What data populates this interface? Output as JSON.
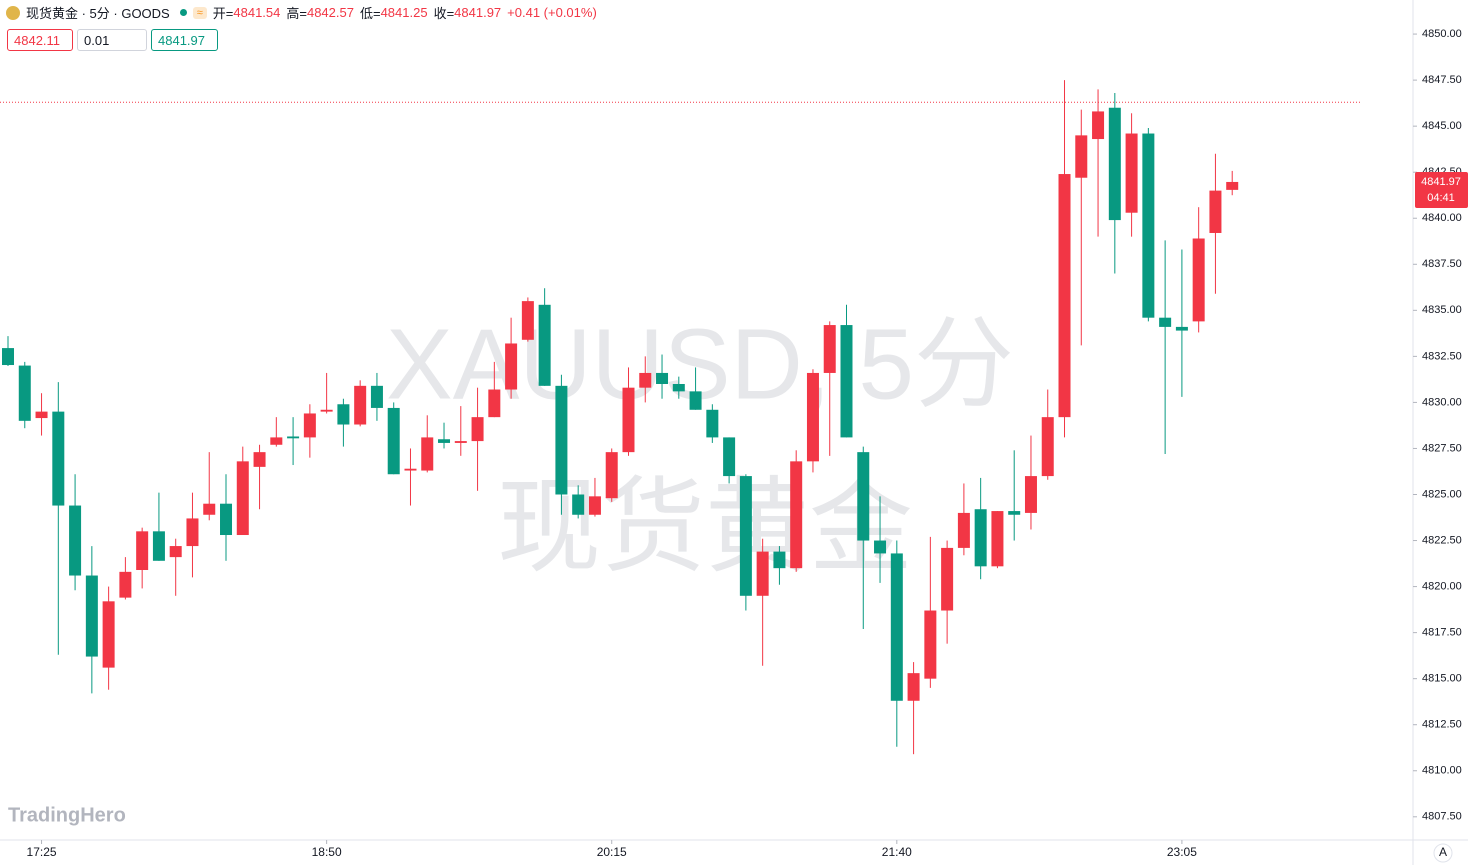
{
  "header": {
    "symbol": "现货黄金 · 5分 · GOODS",
    "open_label": "开=",
    "high_label": "高=",
    "low_label": "低=",
    "close_label": "收=",
    "change": "+0.41 (+0.01%)"
  },
  "quote": {
    "sell": 4842.11,
    "qty": 0.01,
    "buy": 4841.97
  },
  "watermark": [
    "XAUUSD, 5分",
    "现货黄金"
  ],
  "logo": "TradingHero",
  "countdown": "04:41",
  "scale_button": "A",
  "chart_data": {
    "type": "candlestick",
    "categories": [
      null,
      null,
      "17:25",
      null,
      null,
      null,
      null,
      null,
      null,
      null,
      null,
      null,
      null,
      null,
      null,
      null,
      null,
      null,
      null,
      "18:50",
      null,
      null,
      null,
      null,
      null,
      null,
      null,
      null,
      null,
      null,
      null,
      null,
      null,
      null,
      null,
      null,
      "20:15",
      null,
      null,
      null,
      null,
      null,
      null,
      null,
      null,
      null,
      null,
      null,
      null,
      null,
      null,
      null,
      null,
      "21:40",
      null,
      null,
      null,
      null,
      null,
      null,
      null,
      null,
      null,
      null,
      null,
      null,
      null,
      null,
      null,
      null,
      "23:05",
      null,
      null,
      null
    ],
    "open": [
      4832.95,
      4832.0,
      4829.15,
      4829.5,
      4824.4,
      4820.6,
      4815.6,
      4819.4,
      4820.9,
      4823.0,
      4821.6,
      4822.2,
      4823.9,
      4824.5,
      4822.8,
      4826.5,
      4827.7,
      4828.15,
      4828.1,
      4829.5,
      4829.9,
      4828.8,
      4830.9,
      4829.7,
      4826.3,
      4826.3,
      4828.0,
      4827.8,
      4827.9,
      4829.2,
      4830.7,
      4833.4,
      4835.3,
      4830.9,
      4825.0,
      4823.9,
      4824.8,
      4827.3,
      4830.8,
      4831.6,
      4831.0,
      4830.6,
      4829.6,
      4828.1,
      4826.0,
      4819.5,
      4821.9,
      4821.0,
      4826.8,
      4831.6,
      4834.2,
      4827.3,
      4822.5,
      4821.8,
      4813.8,
      4815.0,
      4818.7,
      4822.1,
      4824.2,
      4821.1,
      4824.1,
      4824.0,
      4826.0,
      4829.2,
      4842.2,
      4844.3,
      4846.0,
      4840.3,
      4844.6,
      4834.6,
      4834.1,
      4834.4,
      4839.2,
      4841.54
    ],
    "high": [
      4833.6,
      4832.2,
      4830.5,
      4831.1,
      4826.1,
      4822.2,
      4820.0,
      4821.6,
      4823.2,
      4825.1,
      4822.6,
      4825.1,
      4827.3,
      4826.1,
      4827.6,
      4827.7,
      4829.2,
      4829.2,
      4829.9,
      4831.6,
      4830.2,
      4831.2,
      4831.6,
      4830.0,
      4827.5,
      4829.3,
      4828.9,
      4829.8,
      4830.8,
      4832.2,
      4834.6,
      4835.7,
      4836.2,
      4831.5,
      4825.5,
      4825.9,
      4827.5,
      4831.9,
      4832.5,
      4832.6,
      4831.4,
      4831.9,
      4829.9,
      4828.1,
      4826.1,
      4822.6,
      4822.2,
      4827.4,
      4831.8,
      4834.4,
      4835.3,
      4827.6,
      4824.9,
      4822.5,
      4815.9,
      4822.7,
      4822.5,
      4825.6,
      4825.9,
      4824.1,
      4827.4,
      4828.2,
      4830.7,
      4847.5,
      4845.9,
      4847.0,
      4846.8,
      4845.7,
      4844.9,
      4838.8,
      4838.3,
      4840.6,
      4843.5,
      4842.57
    ],
    "low": [
      4831.98,
      4828.6,
      4828.2,
      4816.3,
      4819.8,
      4814.2,
      4814.4,
      4819.3,
      4819.9,
      4821.4,
      4819.5,
      4820.5,
      4823.6,
      4821.4,
      4822.8,
      4824.2,
      4827.6,
      4826.6,
      4827.0,
      4829.4,
      4827.6,
      4828.7,
      4829.0,
      4826.1,
      4824.4,
      4826.2,
      4827.5,
      4827.1,
      4825.2,
      4829.2,
      4830.2,
      4833.3,
      4830.9,
      4823.9,
      4823.7,
      4823.8,
      4824.6,
      4827.1,
      4830.0,
      4830.2,
      4830.2,
      4829.6,
      4827.8,
      4825.6,
      4818.7,
      4815.7,
      4820.1,
      4820.8,
      4826.2,
      4827.1,
      4828.1,
      4817.7,
      4820.2,
      4811.3,
      4810.9,
      4814.5,
      4816.9,
      4821.7,
      4820.4,
      4821.0,
      4822.5,
      4823.1,
      4825.8,
      4828.1,
      4833.1,
      4839.0,
      4837.0,
      4839.0,
      4834.4,
      4827.2,
      4830.3,
      4833.8,
      4835.9,
      4841.25
    ],
    "close": [
      4832.03,
      4829.0,
      4829.5,
      4824.4,
      4820.6,
      4816.2,
      4819.2,
      4820.8,
      4823.0,
      4821.4,
      4822.2,
      4823.7,
      4824.5,
      4822.8,
      4826.8,
      4827.3,
      4828.1,
      4828.05,
      4829.4,
      4829.6,
      4828.8,
      4830.9,
      4829.7,
      4826.1,
      4826.4,
      4828.1,
      4827.8,
      4827.9,
      4829.2,
      4830.7,
      4833.2,
      4835.5,
      4830.9,
      4825.0,
      4823.9,
      4824.9,
      4827.3,
      4830.8,
      4831.6,
      4831.0,
      4830.6,
      4829.6,
      4828.1,
      4826.0,
      4819.5,
      4821.9,
      4821.0,
      4826.8,
      4831.6,
      4834.2,
      4828.1,
      4822.5,
      4821.8,
      4813.8,
      4815.3,
      4818.7,
      4822.1,
      4824.0,
      4821.1,
      4824.1,
      4823.9,
      4826.0,
      4829.2,
      4842.4,
      4844.5,
      4845.8,
      4839.9,
      4844.6,
      4834.6,
      4834.1,
      4833.9,
      4838.9,
      4841.5,
      4841.97
    ],
    "up_color": "#f23645",
    "down_color": "#089981",
    "price_line": 4846.3,
    "ylim": [
      4806.24,
      4851.85
    ],
    "yticks": [
      {
        "value": 4807.5,
        "label": "4807.50"
      },
      {
        "value": 4810,
        "label": "4810.00"
      },
      {
        "value": 4812.5,
        "label": "4812.50"
      },
      {
        "value": 4815,
        "label": "4815.00"
      },
      {
        "value": 4817.5,
        "label": "4817.50"
      },
      {
        "value": 4820,
        "label": "4820.00"
      },
      {
        "value": 4822.5,
        "label": "4822.50"
      },
      {
        "value": 4825,
        "label": "4825.00"
      },
      {
        "value": 4827.5,
        "label": "4827.50"
      },
      {
        "value": 4830,
        "label": "4830.00"
      },
      {
        "value": 4832.5,
        "label": "4832.50"
      },
      {
        "value": 4835,
        "label": "4835.00"
      },
      {
        "value": 4837.5,
        "label": "4837.50"
      },
      {
        "value": 4840,
        "label": "4840.00"
      },
      {
        "value": 4842.5,
        "label": "4842.50"
      },
      {
        "value": 4845,
        "label": "4845.00"
      },
      {
        "value": 4847.5,
        "label": "4847.50"
      },
      {
        "value": 4850,
        "label": "4850.00"
      }
    ],
    "grid": false
  }
}
